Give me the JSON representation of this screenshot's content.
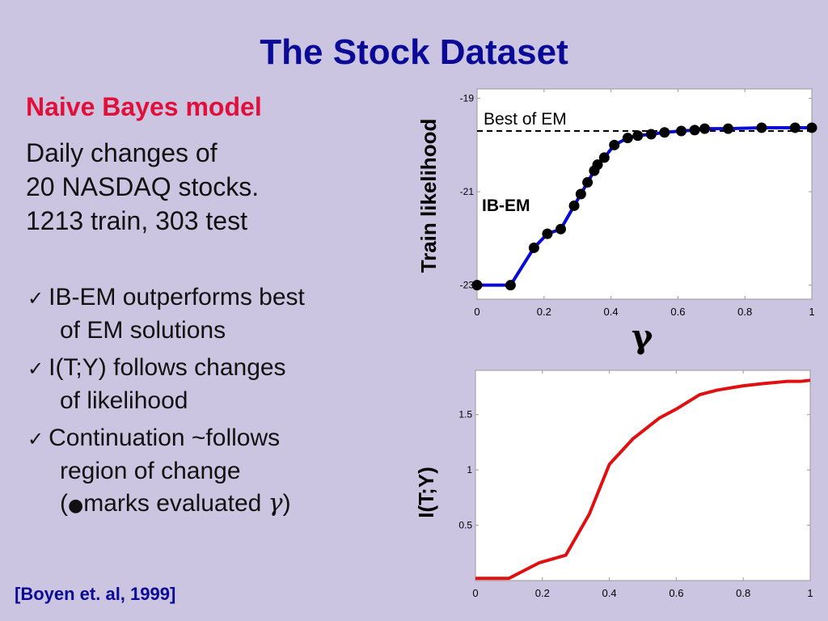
{
  "slide": {
    "title": "The Stock Dataset",
    "model_title": "Naive Bayes model",
    "description_lines": [
      "Daily changes of",
      "20 NASDAQ stocks.",
      "1213 train, 303 test"
    ],
    "bullets": [
      {
        "check": "✓",
        "line1": "IB-EM outperforms best",
        "line2": "of EM solutions"
      },
      {
        "check": "✓",
        "line1": "I(T;Y) follows changes",
        "line2": "of likelihood"
      },
      {
        "check": "✓",
        "line1": "Continuation ~follows",
        "line2": "region of change",
        "line3_open": "(",
        "line3_dot": "●",
        "line3_text": "marks evaluated ",
        "line3_gamma": "γ",
        "line3_close": ")"
      }
    ],
    "citation": "[Boyen et. al, 1999]"
  },
  "chart_data": [
    {
      "type": "line",
      "title": "",
      "xlabel": "γ",
      "ylabel": "Train likelihood",
      "xlim": [
        0,
        1
      ],
      "ylim": [
        -23.3,
        -18.8
      ],
      "xticks": [
        "0",
        "0.2",
        "0.4",
        "0.6",
        "0.8",
        "1"
      ],
      "yticks": [
        "-19",
        "-21",
        "-23"
      ],
      "reference_line": {
        "label": "Best of EM",
        "y": -19.7,
        "style": "dashed",
        "color": "#000000"
      },
      "series": [
        {
          "name": "IB-EM",
          "color": "#0a0ad8",
          "markers": true,
          "x": [
            0,
            0.1,
            0.17,
            0.21,
            0.25,
            0.29,
            0.31,
            0.33,
            0.35,
            0.36,
            0.38,
            0.41,
            0.45,
            0.48,
            0.52,
            0.56,
            0.61,
            0.65,
            0.68,
            0.75,
            0.85,
            0.95,
            1.0
          ],
          "y": [
            -23.0,
            -23.0,
            -22.2,
            -21.9,
            -21.8,
            -21.3,
            -21.05,
            -20.8,
            -20.55,
            -20.42,
            -20.27,
            -20.0,
            -19.85,
            -19.8,
            -19.77,
            -19.73,
            -19.7,
            -19.68,
            -19.65,
            -19.65,
            -19.63,
            -19.63,
            -19.63
          ]
        }
      ]
    },
    {
      "type": "line",
      "title": "",
      "xlabel": "",
      "ylabel": "I(T;Y)",
      "xlim": [
        0,
        1
      ],
      "ylim": [
        0,
        1.9
      ],
      "xticks": [
        "0",
        "0.2",
        "0.4",
        "0.6",
        "0.8",
        "1"
      ],
      "yticks": [
        "0.5",
        "1",
        "1.5"
      ],
      "series": [
        {
          "name": "",
          "color": "#e01010",
          "markers": false,
          "x": [
            0,
            0.1,
            0.19,
            0.27,
            0.34,
            0.4,
            0.47,
            0.55,
            0.6,
            0.67,
            0.72,
            0.8,
            0.86,
            0.93,
            0.97,
            1.0
          ],
          "y": [
            0.02,
            0.02,
            0.16,
            0.23,
            0.6,
            1.05,
            1.28,
            1.47,
            1.55,
            1.68,
            1.72,
            1.76,
            1.78,
            1.8,
            1.8,
            1.81
          ]
        }
      ]
    }
  ]
}
